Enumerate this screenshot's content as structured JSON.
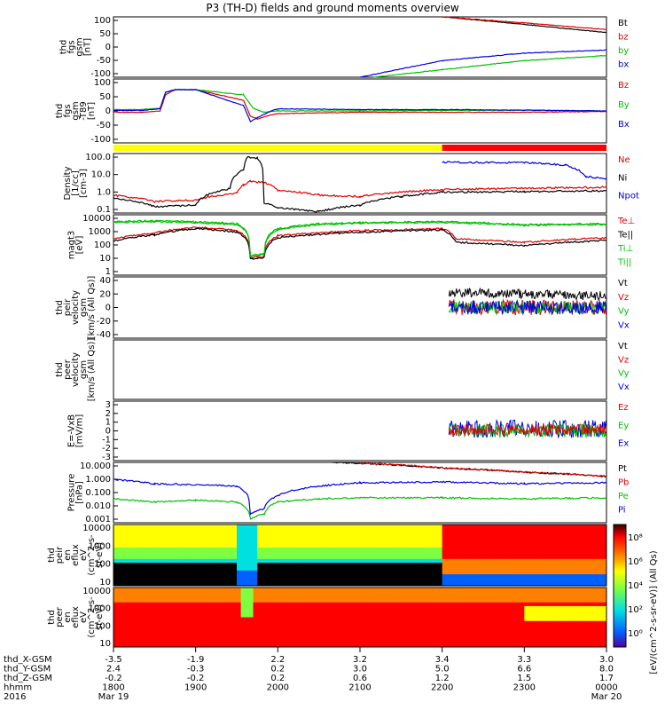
{
  "title": "P3 (TH-D) fields and ground moments overview",
  "chart_data": [
    {
      "type": "line",
      "id": "fgs",
      "ylabel": [
        "thd",
        "fgs",
        "gsm",
        "[nT]"
      ],
      "yticks": [
        "100",
        "50",
        "0",
        "-50",
        "-100"
      ],
      "ylim": [
        -100,
        100
      ],
      "legend": [
        {
          "name": "Bt",
          "color": "#000000"
        },
        {
          "name": "bz",
          "color": "#e00000"
        },
        {
          "name": "by",
          "color": "#00c000"
        },
        {
          "name": "bx",
          "color": "#0000e0"
        }
      ],
      "series": [
        {
          "name": "Bt",
          "t": [
            2200,
            2300,
            2400
          ],
          "values": [
            100,
            75,
            48
          ]
        },
        {
          "name": "bz",
          "t": [
            2200,
            2300,
            2400
          ],
          "values": [
            100,
            80,
            58
          ]
        },
        {
          "name": "by",
          "t": [
            2110,
            2200,
            2300,
            2400
          ],
          "values": [
            -100,
            -75,
            -45,
            -28
          ]
        },
        {
          "name": "bx",
          "t": [
            2100,
            2200,
            2300,
            2400
          ],
          "values": [
            -100,
            -45,
            -20,
            -10
          ]
        }
      ]
    },
    {
      "type": "line",
      "id": "fgs_detrend",
      "ylabel": [
        "thd",
        "fgs",
        "gsm",
        "-T89",
        "[nT]"
      ],
      "yticks": [
        "100",
        "50",
        "0",
        "-50",
        "-100"
      ],
      "ylim": [
        -120,
        120
      ],
      "legend": [
        {
          "name": "Bz",
          "color": "#e00000"
        },
        {
          "name": "By",
          "color": "#00c000"
        },
        {
          "name": "Bx",
          "color": "#0000e0"
        }
      ],
      "series": [
        {
          "name": "Bz",
          "t": [
            1800,
            1820,
            1834,
            1838,
            1845,
            1900,
            1935,
            1940,
            1945,
            1955,
            2000,
            2100,
            2200,
            2300,
            2400
          ],
          "values": [
            -5,
            -5,
            0,
            60,
            80,
            80,
            40,
            -20,
            -30,
            -15,
            -10,
            -5,
            -5,
            -5,
            -2
          ]
        },
        {
          "name": "By",
          "t": [
            1800,
            1820,
            1834,
            1838,
            1845,
            1900,
            1935,
            1942,
            1950,
            2000,
            2100,
            2200,
            2300,
            2400
          ],
          "values": [
            5,
            5,
            10,
            70,
            80,
            80,
            60,
            10,
            -5,
            0,
            0,
            2,
            3,
            0
          ]
        },
        {
          "name": "Bx",
          "t": [
            1800,
            1820,
            1834,
            1838,
            1845,
            1900,
            1935,
            1940,
            1945,
            1955,
            2000,
            2100,
            2200,
            2300,
            2400
          ],
          "values": [
            2,
            2,
            8,
            70,
            80,
            80,
            20,
            -40,
            -25,
            0,
            8,
            5,
            5,
            3,
            0
          ]
        }
      ],
      "status_bar": [
        {
          "t0": 1800,
          "t1": 2200,
          "color": "#ffff00"
        },
        {
          "t0": 2200,
          "t1": 2400,
          "color": "#ff0000"
        }
      ]
    },
    {
      "type": "line",
      "id": "density",
      "log": true,
      "ylabel": [
        "Density",
        "[1/cc]",
        "[cm-3]"
      ],
      "yticks": [
        "100.0",
        "10.0",
        "1.0",
        "0.1"
      ],
      "ylim": [
        0.05,
        200
      ],
      "legend": [
        {
          "name": "Ne",
          "color": "#e00000"
        },
        {
          "name": "Ni",
          "color": "#000000"
        },
        {
          "name": "Npot",
          "color": "#0000e0"
        }
      ],
      "series": [
        {
          "name": "Ne",
          "t": [
            1800,
            1830,
            1900,
            1930,
            1935,
            1940,
            1950,
            2000,
            2030,
            2100,
            2130,
            2200,
            2300,
            2400
          ],
          "values": [
            0.6,
            0.25,
            0.3,
            0.8,
            2.5,
            4,
            3.5,
            1.2,
            0.6,
            0.5,
            0.9,
            1.3,
            1.6,
            1.8
          ]
        },
        {
          "name": "Ni",
          "t": [
            1800,
            1830,
            1900,
            1925,
            1935,
            1938,
            1945,
            1950,
            2000,
            2030,
            2100,
            2130,
            2200,
            2300,
            2400
          ],
          "values": [
            0.4,
            0.12,
            0.15,
            1.5,
            20,
            120,
            110,
            0.2,
            0.1,
            0.06,
            0.15,
            0.5,
            0.9,
            1.0,
            1.1
          ]
        },
        {
          "name": "Npot",
          "t": [
            2200,
            2300,
            2330,
            2345,
            2400
          ],
          "values": [
            60,
            55,
            40,
            8,
            6
          ]
        }
      ]
    },
    {
      "type": "line",
      "id": "temperature",
      "log": true,
      "ylabel": [
        "magt3",
        "[eV]"
      ],
      "yticks": [
        "10000",
        "1000",
        "100",
        "10",
        "1"
      ],
      "ylim": [
        1,
        10000
      ],
      "legend": [
        {
          "name": "Te⊥",
          "color": "#e00000"
        },
        {
          "name": "Te||",
          "color": "#000000"
        },
        {
          "name": "Ti⊥",
          "color": "#00c000"
        },
        {
          "name": "Ti||",
          "color": "#00c000"
        }
      ],
      "series": [
        {
          "name": "Te⊥",
          "t": [
            1800,
            1830,
            1900,
            1930,
            1940,
            1950,
            2000,
            2100,
            2200,
            2210,
            2300,
            2400
          ],
          "values": [
            250,
            600,
            1500,
            900,
            15,
            18,
            400,
            900,
            1200,
            250,
            150,
            300
          ]
        },
        {
          "name": "Te||",
          "t": [
            1800,
            1830,
            1900,
            1930,
            1940,
            1950,
            2000,
            2100,
            2200,
            2210,
            2300,
            2400
          ],
          "values": [
            180,
            450,
            1200,
            700,
            12,
            14,
            300,
            700,
            1000,
            150,
            90,
            200
          ]
        },
        {
          "name": "Ti⊥",
          "t": [
            1800,
            1830,
            1900,
            1930,
            1940,
            1950,
            2000,
            2030,
            2100,
            2200,
            2300,
            2400
          ],
          "values": [
            3500,
            4000,
            3500,
            2500,
            20,
            25,
            1200,
            2500,
            3000,
            3500,
            2200,
            2500
          ]
        },
        {
          "name": "Ti||",
          "t": [
            1800,
            1830,
            1900,
            1930,
            1940,
            1950,
            2000,
            2030,
            2100,
            2200,
            2300,
            2400
          ],
          "values": [
            3000,
            3500,
            3000,
            2200,
            18,
            22,
            1000,
            2200,
            2800,
            3200,
            2000,
            2300
          ]
        }
      ]
    },
    {
      "type": "line",
      "id": "peir_velocity",
      "ylabel": [
        "thd",
        "peir",
        "velocity",
        "gsm",
        "[km/s (All Qs)]"
      ],
      "yticks": [
        "40",
        "20",
        "0",
        "-20",
        "-40"
      ],
      "ylim": [
        -40,
        40
      ],
      "legend": [
        {
          "name": "Vt",
          "color": "#000000"
        },
        {
          "name": "Vz",
          "color": "#e00000"
        },
        {
          "name": "Vy",
          "color": "#00c000"
        },
        {
          "name": "Vx",
          "color": "#0000e0"
        }
      ],
      "series": [
        {
          "name": "Vt",
          "t": [
            2205,
            2400
          ],
          "values": [
            20,
            15
          ],
          "spread": 6
        },
        {
          "name": "Vz",
          "t": [
            2205,
            2400
          ],
          "values": [
            0,
            0
          ],
          "spread": 10
        },
        {
          "name": "Vy",
          "t": [
            2205,
            2400
          ],
          "values": [
            0,
            0
          ],
          "spread": 8
        },
        {
          "name": "Vx",
          "t": [
            2205,
            2400
          ],
          "values": [
            0,
            0
          ],
          "spread": 9
        }
      ]
    },
    {
      "type": "line",
      "id": "peer_velocity",
      "ylabel": [
        "thd",
        "peer",
        "velocity",
        "gsm",
        "[km/s (All Qs)]"
      ],
      "yticks": [],
      "legend": [
        {
          "name": "Vt",
          "color": "#000000"
        },
        {
          "name": "Vz",
          "color": "#e00000"
        },
        {
          "name": "Vy",
          "color": "#00c000"
        },
        {
          "name": "Vx",
          "color": "#0000e0"
        }
      ],
      "series": []
    },
    {
      "type": "line",
      "id": "efield",
      "ylabel": [
        "E=-VxB",
        "[mV/m]"
      ],
      "yticks": [
        "3",
        "2",
        "1",
        "0",
        "-1",
        "-2",
        "-3"
      ],
      "ylim": [
        -3,
        3
      ],
      "legend": [
        {
          "name": "Ez",
          "color": "#e00000"
        },
        {
          "name": "Ey",
          "color": "#00c000"
        },
        {
          "name": "Ex",
          "color": "#0000e0"
        }
      ],
      "series": [
        {
          "name": "Ex",
          "t": [
            2205,
            2400
          ],
          "values": [
            0.2,
            0.2
          ],
          "spread": 0.9
        },
        {
          "name": "Ey",
          "t": [
            2205,
            2400
          ],
          "values": [
            0,
            0
          ],
          "spread": 0.7
        },
        {
          "name": "Ez",
          "t": [
            2205,
            2400
          ],
          "values": [
            0.1,
            0.1
          ],
          "spread": 0.6
        }
      ]
    },
    {
      "type": "line",
      "id": "pressure",
      "log": true,
      "ylabel": [
        "Pressure",
        "[nPa]"
      ],
      "yticks": [
        "10.000",
        "1.000",
        "0.100",
        "0.010",
        "0.001"
      ],
      "ylim": [
        0.001,
        20
      ],
      "legend": [
        {
          "name": "Pt",
          "color": "#000000"
        },
        {
          "name": "Pb",
          "color": "#e00000"
        },
        {
          "name": "Pe",
          "color": "#00c000"
        },
        {
          "name": "Pi",
          "color": "#0000e0"
        }
      ],
      "series": [
        {
          "name": "Pt",
          "t": [
            2040,
            2200,
            2300,
            2400
          ],
          "values": [
            20,
            8,
            4,
            2
          ]
        },
        {
          "name": "Pb",
          "t": [
            2100,
            2200,
            2300,
            2400
          ],
          "values": [
            18,
            8,
            4,
            2
          ]
        },
        {
          "name": "Pe",
          "t": [
            1800,
            1830,
            1900,
            1930,
            1940,
            1950,
            2000,
            2030,
            2100,
            2200,
            2300,
            2400
          ],
          "values": [
            0.05,
            0.03,
            0.04,
            0.03,
            0.002,
            0.004,
            0.03,
            0.05,
            0.06,
            0.06,
            0.05,
            0.06
          ]
        },
        {
          "name": "Pi",
          "t": [
            1800,
            1830,
            1900,
            1930,
            1940,
            1950,
            2000,
            2030,
            2100,
            2200,
            2300,
            2400
          ],
          "values": [
            1.2,
            0.6,
            0.5,
            0.4,
            0.004,
            0.01,
            0.08,
            0.4,
            0.7,
            0.8,
            0.6,
            0.7
          ]
        }
      ]
    },
    {
      "type": "heatmap",
      "id": "peir_spectrogram",
      "ylabel": [
        "thd",
        "peir",
        "en",
        "eflux",
        "eV",
        "(cm^2-s-",
        "sr-eV)"
      ],
      "yticks": [
        "10000",
        "1000",
        "100",
        "10"
      ]
    },
    {
      "type": "heatmap",
      "id": "peer_spectrogram",
      "ylabel": [
        "thd",
        "peer",
        "en",
        "eflux",
        "eV",
        "(cm^2-s-",
        "sr-eV)"
      ],
      "yticks": [
        "10000",
        "1000",
        "100",
        "10"
      ]
    }
  ],
  "colorbar": {
    "label": "[eV/(cm^2-s-sr-eV)] (All Qs)",
    "ticks": [
      "10⁸",
      "10⁶",
      "10⁴",
      "10²",
      "10⁰"
    ],
    "colors": [
      "#3a0000",
      "#ff0000",
      "#ff8000",
      "#ffff00",
      "#80ff40",
      "#00e0e0",
      "#0060ff",
      "#5000a0"
    ]
  },
  "xaxis": {
    "rows": [
      {
        "label": "thd_X-GSM",
        "values": [
          "-3.5",
          "-1.9",
          "2.2",
          "3.2",
          "3.4",
          "3.3",
          "3.0"
        ]
      },
      {
        "label": "thd_Y-GSM",
        "values": [
          "2.4",
          "-0.3",
          "0.2",
          "3.0",
          "5.0",
          "6.6",
          "8.0"
        ]
      },
      {
        "label": "thd_Z-GSM",
        "values": [
          "-0.2",
          "-0.2",
          "0.2",
          "0.6",
          "1.2",
          "1.5",
          "1.7"
        ]
      },
      {
        "label": "hhmm",
        "values": [
          "1800",
          "1900",
          "2000",
          "2100",
          "2200",
          "2300",
          "0000"
        ]
      },
      {
        "label": "2016",
        "values": [
          "Mar 19",
          "",
          "",
          "",
          "",
          "",
          "Mar 20"
        ]
      }
    ]
  }
}
